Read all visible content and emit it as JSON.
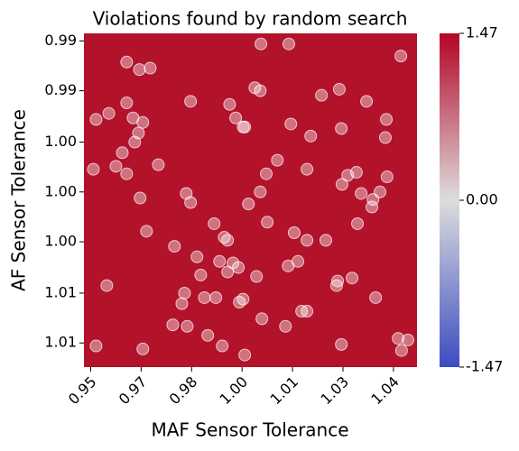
{
  "chart_data": {
    "type": "scatter",
    "title": "Violations found by random search",
    "xlabel": "MAF Sensor Tolerance",
    "ylabel": "AF Sensor Tolerance",
    "heatmap_color": "#b2122a",
    "point_color": "#ffffff",
    "x": [
      1.0006,
      1.0089,
      1.0422,
      0.9607,
      0.9645,
      0.9677,
      0.9988,
      1.0004,
      1.0186,
      1.0239,
      0.9797,
      0.9607,
      0.9913,
      1.032,
      0.9516,
      0.9554,
      0.9626,
      0.9655,
      0.9931,
      0.9953,
      1.0095,
      1.0379,
      0.9642,
      0.9631,
      0.9958,
      1.0154,
      1.0245,
      1.0376,
      0.9594,
      0.9701,
      0.9575,
      0.9508,
      0.9607,
      1.0055,
      1.0022,
      1.0143,
      1.0264,
      1.029,
      1.0247,
      1.0381,
      0.9784,
      0.9647,
      0.9797,
      1.0004,
      0.9969,
      1.0304,
      1.0339,
      1.036,
      1.0336,
      1.0293,
      0.9867,
      1.0025,
      0.9666,
      0.9897,
      0.9907,
      1.0105,
      1.0143,
      1.0199,
      0.9749,
      0.9816,
      0.9883,
      0.9923,
      0.9939,
      0.9907,
      1.0087,
      1.0116,
      0.9827,
      0.9993,
      1.0234,
      1.0277,
      0.9548,
      1.0231,
      0.9779,
      0.9872,
      0.9838,
      0.9953,
      0.9942,
      0.9771,
      1.0347,
      1.0127,
      1.0143,
      1.0009,
      0.9744,
      0.9787,
      1.0079,
      0.9848,
      0.9891,
      1.0245,
      0.9516,
      0.9655,
      0.9958,
      1.0414,
      1.0443,
      1.0424
    ],
    "y": [
      0.9902,
      0.9902,
      0.991,
      0.9914,
      0.9919,
      0.9918,
      0.9931,
      0.9933,
      0.9936,
      0.9932,
      0.994,
      0.9941,
      0.9942,
      0.994,
      0.9952,
      0.9948,
      0.9951,
      0.9954,
      0.9951,
      0.9957,
      0.9955,
      0.9952,
      0.9961,
      0.9967,
      0.9957,
      0.9963,
      0.9958,
      0.9964,
      0.9974,
      0.9982,
      0.9983,
      0.9985,
      0.9988,
      0.9979,
      0.9988,
      0.9985,
      0.9989,
      0.9987,
      0.9995,
      0.999,
      1.0001,
      1.0004,
      1.0007,
      1.0,
      1.0008,
      1.0001,
      1.0005,
      1.0,
      1.001,
      1.0021,
      1.0021,
      1.002,
      1.0026,
      1.003,
      1.0032,
      1.0027,
      1.0032,
      1.0032,
      1.0036,
      1.0043,
      1.0046,
      1.0047,
      1.005,
      1.0053,
      1.0049,
      1.0046,
      1.0055,
      1.0056,
      1.0059,
      1.0057,
      1.0062,
      1.0062,
      1.0067,
      1.007,
      1.007,
      1.0071,
      1.0073,
      1.0074,
      1.007,
      1.0079,
      1.0079,
      1.0084,
      1.0088,
      1.0089,
      1.0089,
      1.0095,
      1.0102,
      1.0101,
      1.0102,
      1.0104,
      1.0108,
      1.0097,
      1.0098,
      1.0105
    ],
    "xlim": [
      0.948,
      1.047
    ],
    "ylim": [
      1.0116,
      0.9895
    ],
    "xticks": [
      {
        "value": 0.95,
        "label": "0.95"
      },
      {
        "value": 0.965,
        "label": "0.97"
      },
      {
        "value": 0.98,
        "label": "0.98"
      },
      {
        "value": 0.995,
        "label": "1.00"
      },
      {
        "value": 1.01,
        "label": "1.01"
      },
      {
        "value": 1.025,
        "label": "1.03"
      },
      {
        "value": 1.04,
        "label": "1.04"
      }
    ],
    "yticks": [
      {
        "value": 0.99,
        "label": "0.99"
      },
      {
        "value": 0.9933,
        "label": "0.99"
      },
      {
        "value": 0.9967,
        "label": "1.00"
      },
      {
        "value": 1.0,
        "label": "1.00"
      },
      {
        "value": 1.0033,
        "label": "1.00"
      },
      {
        "value": 1.0067,
        "label": "1.01"
      },
      {
        "value": 1.01,
        "label": "1.01"
      }
    ],
    "colorbar": {
      "lim": [
        -1.47,
        1.47
      ],
      "ticks": [
        -1.47,
        {
          "value": 0,
          "label": "0.00"
        },
        1.47
      ],
      "colors": [
        "#3b4cc0",
        "#dddddd",
        "#b40426"
      ]
    }
  }
}
